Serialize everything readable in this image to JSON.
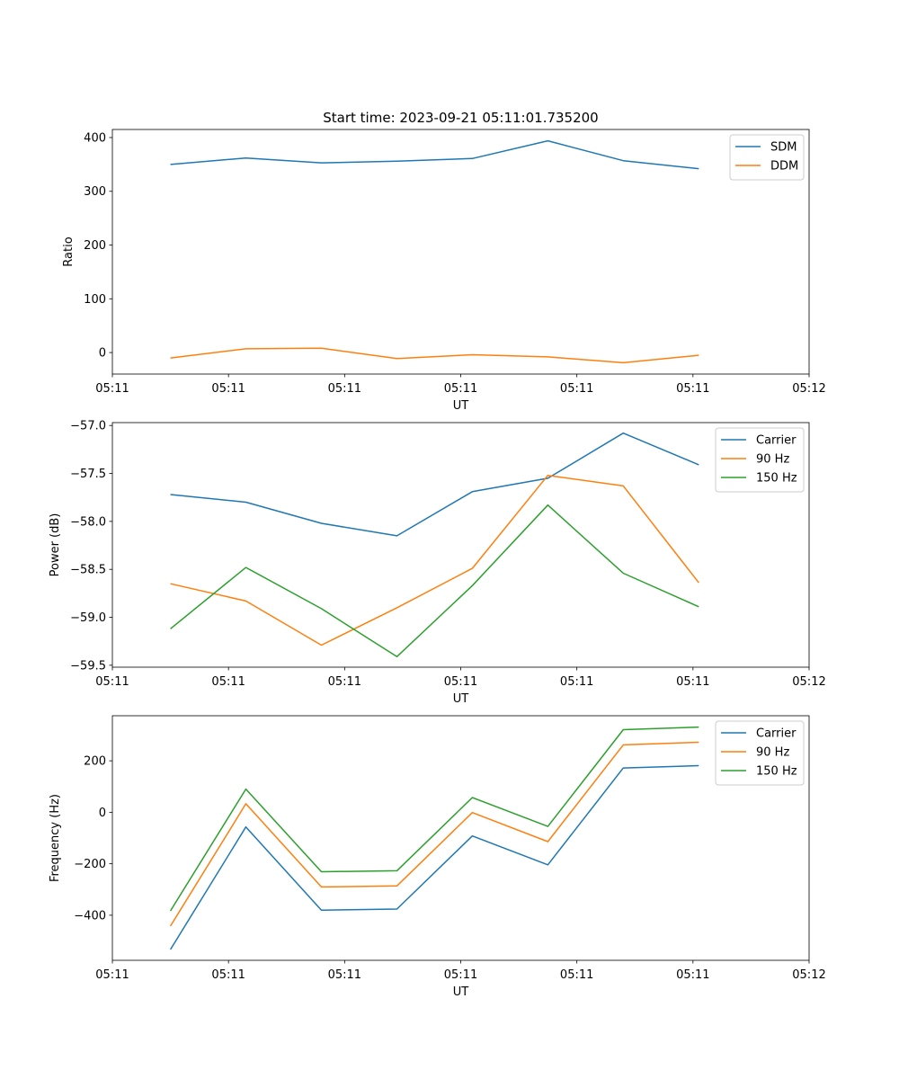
{
  "colors": {
    "blue": "#1f77b4",
    "orange": "#ff7f0e",
    "green": "#2ca02c"
  },
  "chart_data": [
    {
      "type": "line",
      "title": "Start time: 2023-09-21 05:11:01.735200",
      "xlabel": "UT",
      "ylabel": "Ratio",
      "x": [
        0.5,
        1.15,
        1.8,
        2.45,
        3.1,
        3.75,
        4.4,
        5.05
      ],
      "xlim": [
        0,
        6
      ],
      "x_ticks": [
        0,
        1,
        2,
        3,
        4,
        5,
        6
      ],
      "x_tick_labels": [
        "05:11",
        "05:11",
        "05:11",
        "05:11",
        "05:11",
        "05:11",
        "05:12"
      ],
      "ylim": [
        -40,
        415
      ],
      "y_ticks": [
        0,
        100,
        200,
        300,
        400
      ],
      "y_tick_labels": [
        "0",
        "100",
        "200",
        "300",
        "400"
      ],
      "legend_position": "top-right",
      "series": [
        {
          "name": "SDM",
          "color": "#1f77b4",
          "values": [
            350,
            362,
            353,
            356,
            361,
            394,
            357,
            342
          ]
        },
        {
          "name": "DDM",
          "color": "#ff7f0e",
          "values": [
            -10,
            7,
            8,
            -11,
            -4,
            -8,
            -19,
            -5
          ]
        }
      ]
    },
    {
      "type": "line",
      "title": "",
      "xlabel": "UT",
      "ylabel": "Power (dB)",
      "x": [
        0.5,
        1.15,
        1.8,
        2.45,
        3.1,
        3.75,
        4.4,
        5.05
      ],
      "xlim": [
        0,
        6
      ],
      "x_ticks": [
        0,
        1,
        2,
        3,
        4,
        5,
        6
      ],
      "x_tick_labels": [
        "05:11",
        "05:11",
        "05:11",
        "05:11",
        "05:11",
        "05:11",
        "05:12"
      ],
      "ylim": [
        -59.52,
        -56.97
      ],
      "y_ticks": [
        -59.5,
        -59.0,
        -58.5,
        -58.0,
        -57.5,
        -57.0
      ],
      "y_tick_labels": [
        "−59.5",
        "−59.0",
        "−58.5",
        "−58.0",
        "−57.5",
        "−57.0"
      ],
      "legend_position": "top-right",
      "series": [
        {
          "name": "Carrier",
          "color": "#1f77b4",
          "values": [
            -57.72,
            -57.8,
            -58.02,
            -58.15,
            -57.69,
            -57.55,
            -57.08,
            -57.41
          ]
        },
        {
          "name": "90 Hz",
          "color": "#ff7f0e",
          "values": [
            -58.65,
            -58.83,
            -59.29,
            -58.9,
            -58.49,
            -57.52,
            -57.63,
            -58.64
          ]
        },
        {
          "name": "150 Hz",
          "color": "#2ca02c",
          "values": [
            -59.12,
            -58.48,
            -58.91,
            -59.41,
            -58.67,
            -57.83,
            -58.54,
            -58.89
          ]
        }
      ]
    },
    {
      "type": "line",
      "title": "",
      "xlabel": "UT",
      "ylabel": "Frequency (Hz)",
      "x": [
        0.5,
        1.15,
        1.8,
        2.45,
        3.1,
        3.75,
        4.4,
        5.05
      ],
      "xlim": [
        0,
        6
      ],
      "x_ticks": [
        0,
        1,
        2,
        3,
        4,
        5,
        6
      ],
      "x_tick_labels": [
        "05:11",
        "05:11",
        "05:11",
        "05:11",
        "05:11",
        "05:11",
        "05:12"
      ],
      "ylim": [
        -575,
        375
      ],
      "y_ticks": [
        -400,
        -200,
        0,
        200
      ],
      "y_tick_labels": [
        "−400",
        "−200",
        "0",
        "200"
      ],
      "legend_position": "top-right",
      "series": [
        {
          "name": "Carrier",
          "color": "#1f77b4",
          "values": [
            -533,
            -57,
            -380,
            -376,
            -92,
            -204,
            172,
            181
          ]
        },
        {
          "name": "90 Hz",
          "color": "#ff7f0e",
          "values": [
            -442,
            33,
            -290,
            -286,
            -1,
            -114,
            262,
            272
          ]
        },
        {
          "name": "150 Hz",
          "color": "#2ca02c",
          "values": [
            -383,
            90,
            -231,
            -227,
            57,
            -55,
            321,
            331
          ]
        }
      ]
    }
  ]
}
